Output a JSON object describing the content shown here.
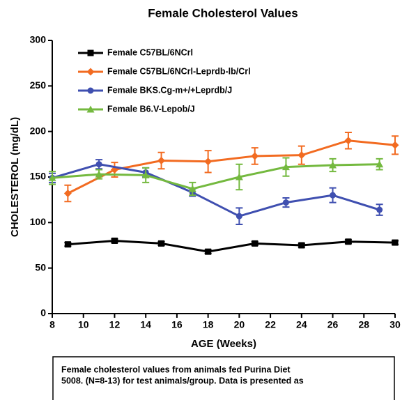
{
  "chart_data": {
    "type": "line",
    "title": "Female Cholesterol Values",
    "x_label": "AGE (Weeks)",
    "y_label": "CHOLESTEROL (mg/dL)",
    "xlim": [
      8,
      30
    ],
    "xticks": [
      8,
      10,
      12,
      14,
      16,
      18,
      20,
      22,
      24,
      26,
      28,
      30
    ],
    "ylim": [
      0,
      300
    ],
    "yticks": [
      0,
      50,
      100,
      150,
      200,
      250,
      300
    ],
    "legend": "top-left",
    "series": [
      {
        "name": "Female C57BL/6NCrl",
        "color": "#000000",
        "marker": "square",
        "x": [
          9,
          12,
          15,
          18,
          21,
          24,
          27,
          30
        ],
        "values": [
          76,
          80,
          77,
          68,
          77,
          75,
          79,
          78
        ],
        "errors": [
          2,
          2,
          2,
          2,
          2,
          2,
          2,
          2
        ]
      },
      {
        "name": "Female C57BL/6NCrl-Leprdb-lb/Crl",
        "color": "#f26b21",
        "marker": "diamond",
        "x": [
          9,
          12,
          15,
          18,
          21,
          24,
          27,
          30
        ],
        "values": [
          132,
          158,
          168,
          167,
          173,
          174,
          190,
          185
        ],
        "errors": [
          9,
          8,
          9,
          12,
          9,
          10,
          9,
          10
        ]
      },
      {
        "name": "Female BKS.Cg-m+/+Leprdb/J",
        "color": "#3f4fb0",
        "marker": "circle",
        "x": [
          8,
          11,
          14,
          17,
          20,
          23,
          26,
          29
        ],
        "values": [
          149,
          164,
          155,
          133,
          107,
          122,
          130,
          114
        ],
        "errors": [
          5,
          5,
          5,
          4,
          9,
          5,
          8,
          6
        ]
      },
      {
        "name": "Female B6.V-Lepob/J",
        "color": "#74b93f",
        "marker": "triangle",
        "x": [
          8,
          11,
          14,
          17,
          20,
          23,
          26,
          29
        ],
        "values": [
          149,
          153,
          152,
          137,
          150,
          161,
          163,
          164
        ],
        "errors": [
          7,
          5,
          8,
          7,
          14,
          10,
          7,
          6
        ]
      }
    ],
    "caption": [
      "Female cholesterol values from animals fed Purina Diet",
      "5008. (N=8-13) for test animals/group. Data is presented as"
    ]
  }
}
